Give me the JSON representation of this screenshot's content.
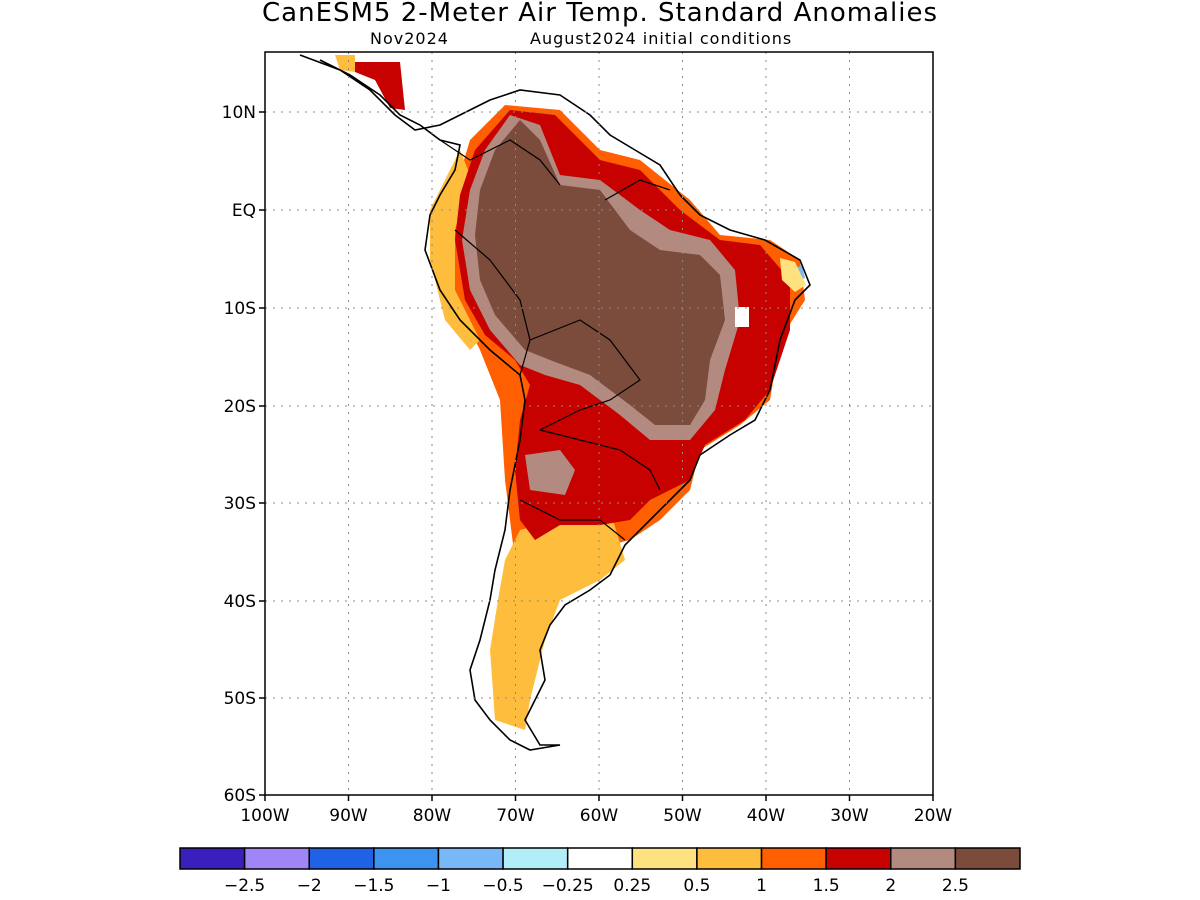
{
  "header": {
    "title": "CanESM5 2-Meter Air Temp. Standard Anomalies",
    "valid_month": "Nov2024",
    "init": "August2024 initial conditions"
  },
  "map": {
    "lat_ticks": [
      "10N",
      "EQ",
      "10S",
      "20S",
      "30S",
      "40S",
      "50S",
      "60S"
    ],
    "lon_ticks": [
      "100W",
      "90W",
      "80W",
      "70W",
      "60W",
      "50W",
      "40W",
      "30W",
      "20W"
    ],
    "grid": true,
    "land_ocean_outline": "coastline-and-borders"
  },
  "colorbar": {
    "colors": [
      "#3a1fbd",
      "#9f85f5",
      "#1f62e6",
      "#3d93f0",
      "#79b8f7",
      "#b2eef8",
      "#ffffff",
      "#ffe280",
      "#ffbd3d",
      "#ff5f00",
      "#c70000",
      "#b38a80",
      "#7b4b3c"
    ],
    "labels": [
      "-2.5",
      "-2",
      "-1.5",
      "-1",
      "-0.5",
      "-0.25",
      "0.25",
      "0.5",
      "1",
      "1.5",
      "2",
      "2.5"
    ]
  }
}
